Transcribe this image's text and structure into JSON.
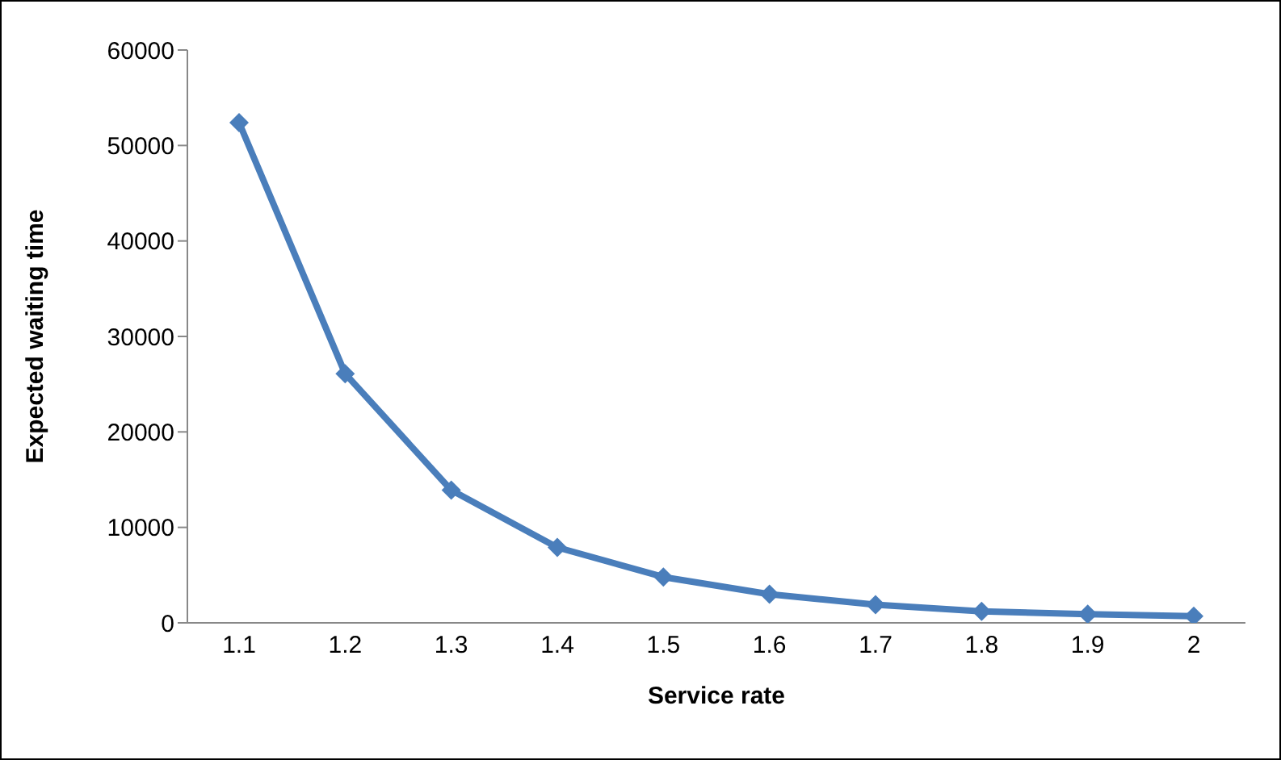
{
  "chart_data": {
    "type": "line",
    "xlabel": "Service rate",
    "ylabel": "Expected waiting time",
    "categories": [
      "1.1",
      "1.2",
      "1.3",
      "1.4",
      "1.5",
      "1.6",
      "1.7",
      "1.8",
      "1.9",
      "2"
    ],
    "series": [
      {
        "color": "#4a7ebb",
        "values": [
          52400,
          26100,
          13900,
          7900,
          4800,
          3000,
          1900,
          1200,
          900,
          700
        ]
      }
    ],
    "ylim": [
      0,
      60000
    ],
    "yticks": [
      0,
      10000,
      20000,
      30000,
      40000,
      50000,
      60000
    ],
    "grid": false,
    "legend": false,
    "marker": "diamond",
    "line_style": "solid"
  }
}
